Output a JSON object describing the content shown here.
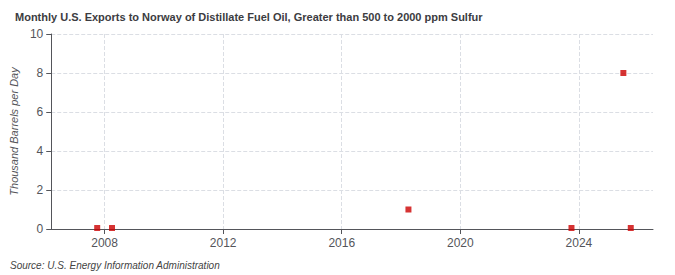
{
  "chart_data": {
    "type": "scatter",
    "title": "Monthly U.S. Exports to Norway of Distillate Fuel Oil, Greater than 500 to 2000 ppm Sulfur",
    "ylabel": "Thousand Barrels per Day",
    "source": "Source: U.S. Energy Information Administration",
    "x": [
      2007.75,
      2008.25,
      2018.25,
      2023.75,
      2025.5,
      2025.75
    ],
    "values": [
      0.05,
      0.05,
      1.0,
      0.05,
      8.0,
      0.05
    ],
    "color": "#cc0000",
    "marker": "square",
    "xlim": [
      2006.2,
      2026.5
    ],
    "xticks": [
      2008,
      2012,
      2016,
      2020,
      2024
    ],
    "ylim": [
      0,
      10
    ],
    "yticks": [
      0,
      2,
      4,
      6,
      8,
      10
    ],
    "grid": true
  }
}
